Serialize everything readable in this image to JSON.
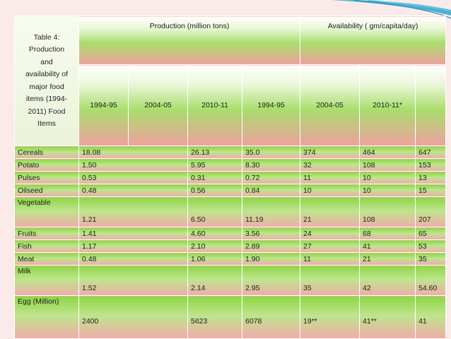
{
  "caption": "Table 4: Production and availability of major food items (1994-2011) Food Items",
  "caption_lines": [
    "Table 4:",
    "Production",
    "and",
    "availability of",
    "major food",
    "items (1994-",
    "2011) Food",
    "Items"
  ],
  "group_headers": {
    "production": "Production (million tons)",
    "availability": "Availability ( gm/capita/day)"
  },
  "year_headers": [
    "1994-95",
    "2004-05",
    "2010-11",
    "1994-95",
    "2004-05",
    "2010-11*",
    ""
  ],
  "rows": [
    {
      "item": "Cereals",
      "values": [
        "18.08",
        "26.13",
        "35.0",
        "374",
        "464",
        "647"
      ]
    },
    {
      "item": "Potato",
      "values": [
        "1.50",
        "5.95",
        "8.30",
        "32",
        "108",
        "153"
      ]
    },
    {
      "item": "Pulses",
      "values": [
        "0.53",
        "0.31",
        "0.72",
        "11",
        "10",
        "13"
      ]
    },
    {
      "item": "Oilseed",
      "values": [
        "0.48",
        "0.56",
        "0.84",
        "10",
        "10",
        "15"
      ]
    },
    {
      "item": "Vegetable",
      "values": [
        "1.21",
        "6.50",
        "11.19",
        "21",
        "108",
        "207"
      ]
    },
    {
      "item": "Fruits",
      "values": [
        "1.41",
        "4.60",
        "3.56",
        "24",
        "68",
        "65"
      ]
    },
    {
      "item": "Fish",
      "values": [
        "1.17",
        "2.10",
        "2.89",
        "27",
        "41",
        "53"
      ]
    },
    {
      "item": "Meat",
      "values": [
        "0.48",
        "1.06",
        "1.90",
        "11",
        "21",
        "35"
      ]
    },
    {
      "item": "Milk",
      "values": [
        "1.52",
        "2.14",
        "2.95",
        "35",
        "42",
        "54.60"
      ]
    },
    {
      "item": "Egg (Million)",
      "values": [
        "2400",
        "5623",
        "6078",
        "19**",
        "41**",
        "41"
      ]
    }
  ],
  "colors": {
    "background": "#fbeaea",
    "green": "#8fd545",
    "pink": "#f1acac",
    "swoosh": "#2aa6cf"
  }
}
